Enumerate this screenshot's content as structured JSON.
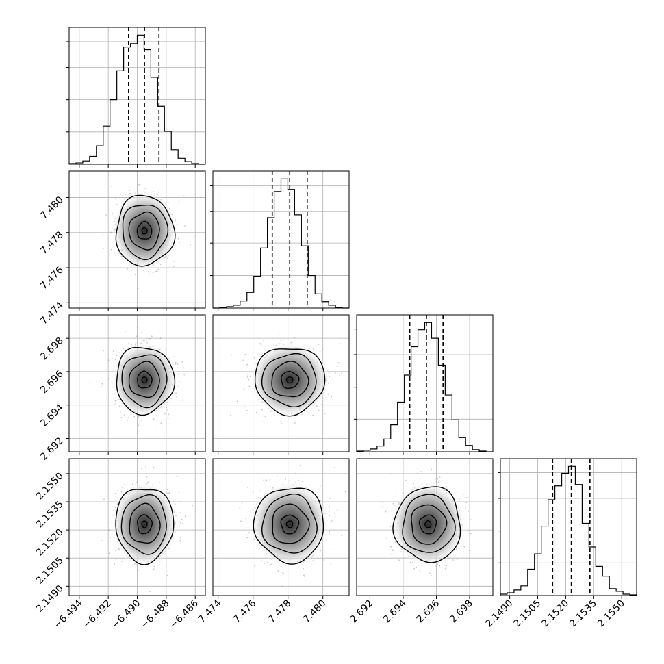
{
  "chart_data": {
    "type": "corner",
    "grid": true,
    "colors": {
      "line": "#000000",
      "grid": "#b0b0b0",
      "points": "#9a9a9a"
    },
    "parameters": [
      {
        "ticks": [
          "−6.494",
          "−6.492",
          "−6.490",
          "−6.488",
          "−6.486"
        ],
        "tick_values": [
          -6.494,
          -6.492,
          -6.49,
          -6.488,
          -6.486
        ],
        "range": [
          -6.4947,
          -6.4853
        ],
        "quantiles": [
          -6.4906,
          -6.4895,
          -6.4885
        ],
        "mean": -6.4895,
        "sd": 0.001,
        "hist_counts": [
          1,
          2,
          5,
          12,
          28,
          58,
          98,
          142,
          178,
          183,
          196,
          174,
          132,
          88,
          50,
          22,
          9,
          4,
          1,
          0
        ]
      },
      {
        "ticks": [
          "7.474",
          "7.476",
          "7.478",
          "7.480"
        ],
        "tick_values": [
          7.474,
          7.476,
          7.478,
          7.48
        ],
        "range": [
          7.4737,
          7.4815
        ],
        "quantiles": [
          7.4771,
          7.4781,
          7.4791
        ],
        "mean": 7.4781,
        "sd": 0.001,
        "hist_counts": [
          0,
          1,
          2,
          4,
          10,
          22,
          45,
          85,
          128,
          165,
          183,
          168,
          132,
          88,
          46,
          20,
          9,
          4,
          1,
          0
        ]
      },
      {
        "ticks": [
          "2.692",
          "2.694",
          "2.696",
          "2.698"
        ],
        "tick_values": [
          2.692,
          2.694,
          2.696,
          2.698
        ],
        "range": [
          2.6912,
          2.6994
        ],
        "quantiles": [
          2.6944,
          2.6954,
          2.6964
        ],
        "mean": 2.6955,
        "sd": 0.001,
        "hist_counts": [
          1,
          2,
          4,
          8,
          18,
          38,
          70,
          108,
          148,
          172,
          182,
          160,
          122,
          80,
          45,
          20,
          9,
          3,
          1,
          0
        ]
      },
      {
        "ticks": [
          "2.1490",
          "2.1505",
          "2.1520",
          "2.1535",
          "2.1550"
        ],
        "tick_values": [
          2.149,
          2.1505,
          2.152,
          2.1535,
          2.155
        ],
        "range": [
          2.1485,
          2.1558
        ],
        "quantiles": [
          2.1513,
          2.1523,
          2.1533
        ],
        "mean": 2.1523,
        "sd": 0.001,
        "hist_counts": [
          2,
          4,
          8,
          14,
          38,
          60,
          100,
          138,
          158,
          176,
          186,
          160,
          104,
          70,
          42,
          28,
          10,
          6,
          2,
          1
        ]
      }
    ]
  }
}
